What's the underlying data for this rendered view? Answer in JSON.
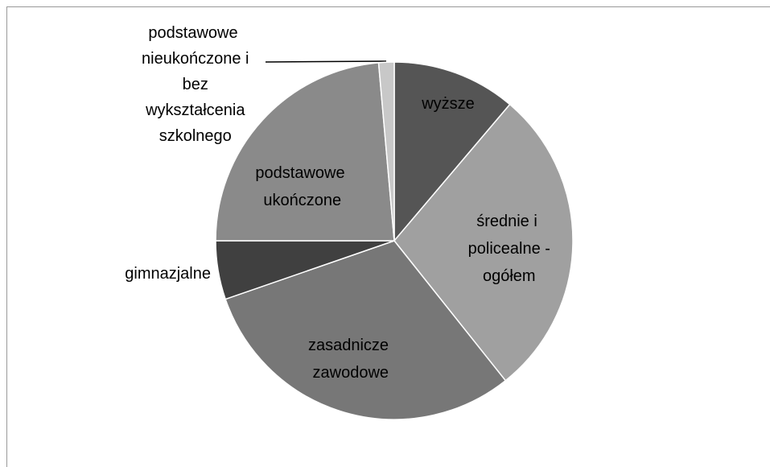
{
  "chart_data": {
    "type": "pie",
    "categories": [
      "wyższe",
      "średnie i policealne - ogółem",
      "zasadnicze zawodowe",
      "gimnazjalne",
      "podstawowe ukończone",
      "podstawowe nieukończone i bez wykształcenia szkolnego"
    ],
    "values": [
      11.2,
      28.1,
      30.4,
      5.3,
      23.6,
      1.4
    ],
    "colors": [
      "#555555",
      "#a0a0a0",
      "#777777",
      "#404040",
      "#8a8a8a",
      "#c8c8c8"
    ]
  }
}
